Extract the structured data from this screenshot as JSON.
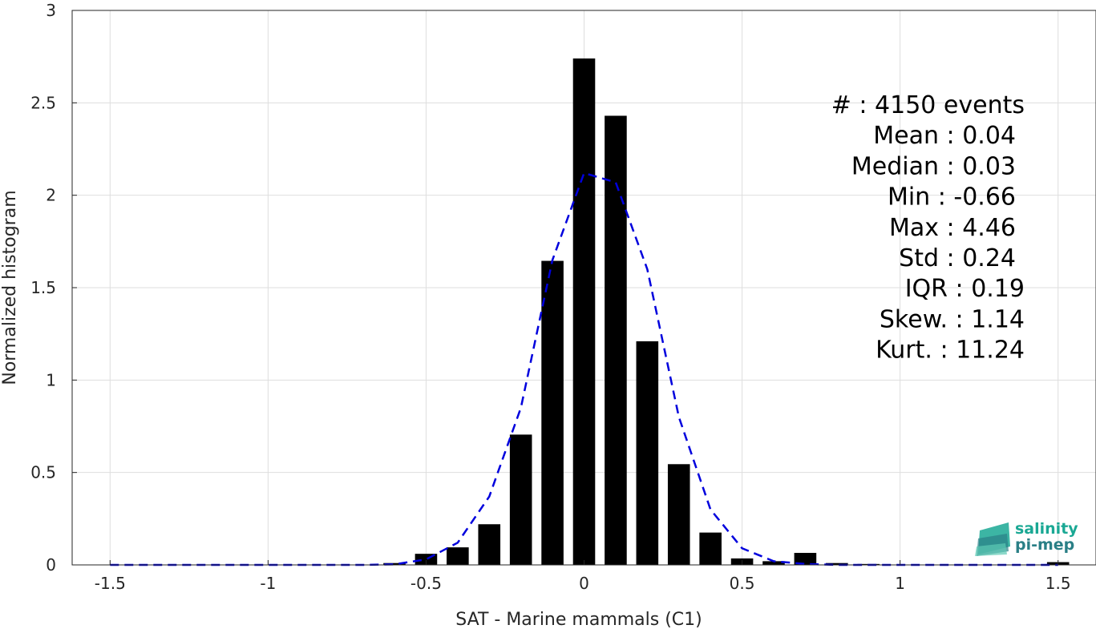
{
  "chart_data": {
    "type": "bar",
    "xlabel": "SAT - Marine mammals (C1)",
    "ylabel": "Normalized histogram",
    "xlim": [
      -1.62,
      1.62
    ],
    "ylim": [
      0,
      3
    ],
    "xticks": [
      "-1.5",
      "-1",
      "-0.5",
      "0",
      "0.5",
      "1",
      "1.5"
    ],
    "xtick_values": [
      -1.5,
      -1,
      -0.5,
      0,
      0.5,
      1,
      1.5
    ],
    "yticks": [
      "0",
      "0.5",
      "1",
      "1.5",
      "2",
      "2.5",
      "3"
    ],
    "ytick_values": [
      0,
      0.5,
      1,
      1.5,
      2,
      2.5,
      3
    ],
    "grid": true,
    "bar_color": "#000000",
    "fit_color": "#0000dd",
    "bins": [
      {
        "x": -0.6,
        "y": 0.01
      },
      {
        "x": -0.5,
        "y": 0.06
      },
      {
        "x": -0.4,
        "y": 0.095
      },
      {
        "x": -0.3,
        "y": 0.22
      },
      {
        "x": -0.2,
        "y": 0.705
      },
      {
        "x": -0.1,
        "y": 1.645
      },
      {
        "x": 0.0,
        "y": 2.74
      },
      {
        "x": 0.1,
        "y": 2.43
      },
      {
        "x": 0.2,
        "y": 1.21
      },
      {
        "x": 0.3,
        "y": 0.545
      },
      {
        "x": 0.4,
        "y": 0.175
      },
      {
        "x": 0.5,
        "y": 0.035
      },
      {
        "x": 0.6,
        "y": 0.02
      },
      {
        "x": 0.7,
        "y": 0.065
      },
      {
        "x": 0.8,
        "y": 0.01
      },
      {
        "x": 0.9,
        "y": 0.005
      },
      {
        "x": 1.5,
        "y": 0.015
      }
    ],
    "bin_width": 0.07,
    "fit_curve": {
      "x": [
        -1.5,
        -1.0,
        -0.7,
        -0.6,
        -0.5,
        -0.4,
        -0.3,
        -0.2,
        -0.1,
        0.0,
        0.1,
        0.2,
        0.3,
        0.4,
        0.5,
        0.6,
        0.7,
        0.8,
        1.0,
        1.5
      ],
      "y": [
        0.0,
        0.0,
        0.0,
        0.003,
        0.03,
        0.12,
        0.37,
        0.85,
        1.65,
        2.12,
        2.07,
        1.6,
        0.8,
        0.3,
        0.09,
        0.02,
        0.005,
        0.0,
        0.0,
        0.0
      ]
    },
    "stats": [
      {
        "label": "#  : 4150 events"
      },
      {
        "label": "Mean : 0.04"
      },
      {
        "label": "Median : 0.03"
      },
      {
        "label": "Min : -0.66"
      },
      {
        "label": "Max : 4.46"
      },
      {
        "label": "Std : 0.24"
      },
      {
        "label": "IQR : 0.19"
      },
      {
        "label": "Skew. : 1.14"
      },
      {
        "label": "Kurt. : 11.24"
      }
    ]
  },
  "logo": {
    "line1": "salinity",
    "line2": "pi-mep",
    "color1": "#1aa894",
    "color2": "#2a7f86"
  }
}
